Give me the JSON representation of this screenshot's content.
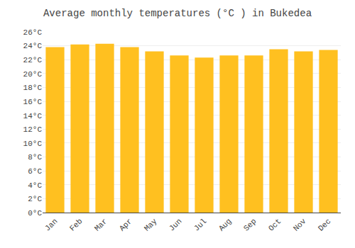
{
  "chart_data": {
    "type": "bar",
    "title": "Average monthly temperatures (°C ) in Bukedea",
    "categories": [
      "Jan",
      "Feb",
      "Mar",
      "Apr",
      "May",
      "Jun",
      "Jul",
      "Aug",
      "Sep",
      "Oct",
      "Nov",
      "Dec"
    ],
    "values": [
      23.8,
      24.2,
      24.3,
      23.8,
      23.2,
      22.6,
      22.3,
      22.6,
      22.6,
      23.5,
      23.2,
      23.4
    ],
    "color": "#FFC020",
    "ylim": [
      0,
      26
    ],
    "yticks": [
      {
        "value": 0,
        "label": "0°C"
      },
      {
        "value": 2,
        "label": "2°C"
      },
      {
        "value": 4,
        "label": "4°C"
      },
      {
        "value": 6,
        "label": "6°C"
      },
      {
        "value": 8,
        "label": "8°C"
      },
      {
        "value": 10,
        "label": "10°C"
      },
      {
        "value": 12,
        "label": "12°C"
      },
      {
        "value": 14,
        "label": "14°C"
      },
      {
        "value": 16,
        "label": "16°C"
      },
      {
        "value": 18,
        "label": "18°C"
      },
      {
        "value": 20,
        "label": "20°C"
      },
      {
        "value": 22,
        "label": "22°C"
      },
      {
        "value": 24,
        "label": "24°C"
      },
      {
        "value": 26,
        "label": "26°C"
      }
    ],
    "grid": true
  }
}
